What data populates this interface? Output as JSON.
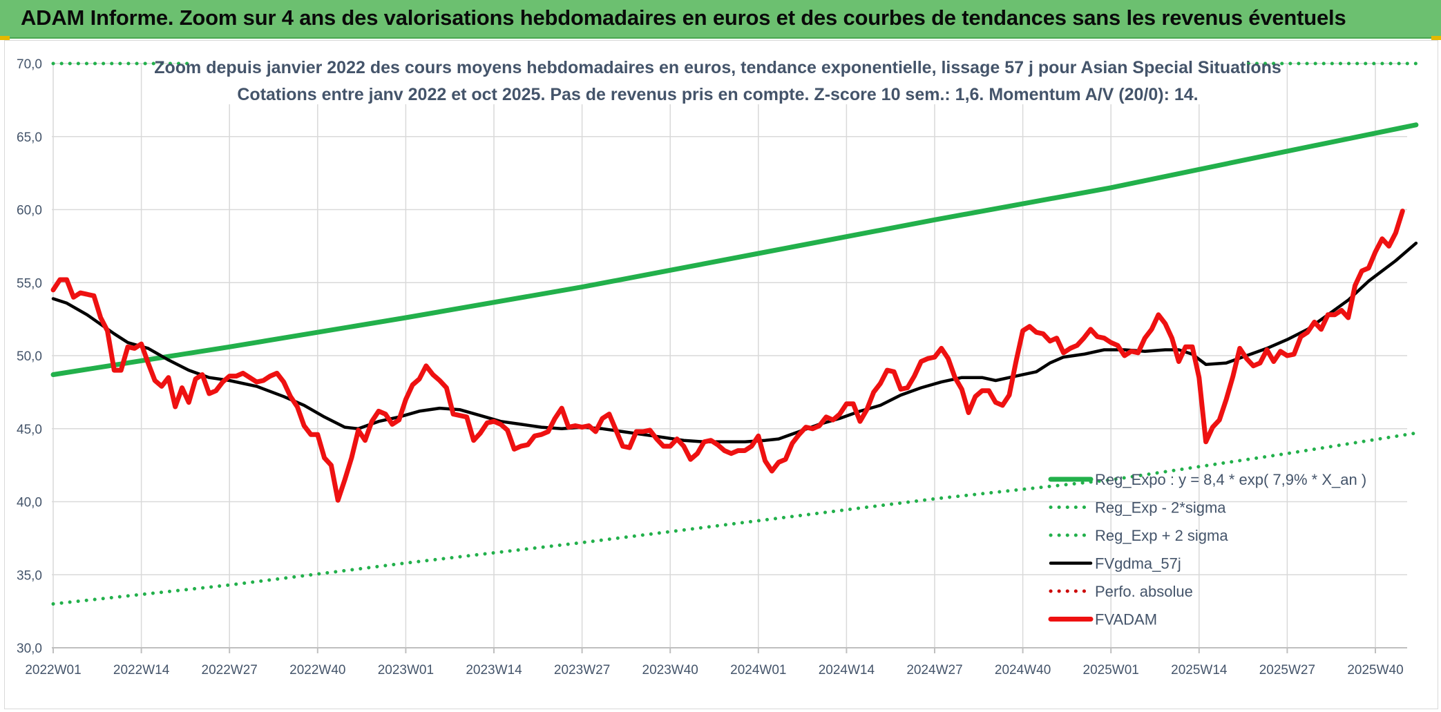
{
  "header": {
    "title": "ADAM Informe. Zoom sur 4 ans des valorisations hebdomadaires en euros et des courbes de tendances sans les revenus éventuels"
  },
  "colors": {
    "header_bg": "#6cc070",
    "regression": "#22b04b",
    "sigma_band": "#22b04b",
    "smoothed": "#000000",
    "price": "#ee1111",
    "perfo": "#cc0000",
    "axis_text": "#44546a",
    "grid": "#d9d9d9"
  },
  "chart_data": {
    "type": "line",
    "title": "Zoom depuis janvier 2022 des cours moyens hebdomadaires en euros, tendance exponentielle, lissage 57 j pour Asian Special Situations",
    "subtitle": "Cotations entre janv 2022 et oct 2025. Pas de revenus pris en compte. Z-score 10 sem.: 1,6. Momentum A/V (20/0): 14.",
    "xlabel": "",
    "ylabel": "",
    "ylim": [
      30,
      70
    ],
    "yticks": [
      "30,0",
      "35,0",
      "40,0",
      "45,0",
      "50,0",
      "55,0",
      "60,0",
      "65,0",
      "70,0"
    ],
    "grid": true,
    "x_start_index": 1,
    "x_end_index": 196,
    "x_ticks": [
      {
        "index": 1,
        "label": "2022W01"
      },
      {
        "index": 14,
        "label": "2022W14"
      },
      {
        "index": 27,
        "label": "2022W27"
      },
      {
        "index": 40,
        "label": "2022W40"
      },
      {
        "index": 53,
        "label": "2023W01"
      },
      {
        "index": 66,
        "label": "2023W14"
      },
      {
        "index": 79,
        "label": "2023W27"
      },
      {
        "index": 92,
        "label": "2023W40"
      },
      {
        "index": 105,
        "label": "2024W01"
      },
      {
        "index": 118,
        "label": "2024W14"
      },
      {
        "index": 131,
        "label": "2024W27"
      },
      {
        "index": 144,
        "label": "2024W40"
      },
      {
        "index": 157,
        "label": "2025W01"
      },
      {
        "index": 170,
        "label": "2025W14"
      },
      {
        "index": 183,
        "label": "2025W27"
      },
      {
        "index": 196,
        "label": "2025W40"
      }
    ],
    "legend_position": "lower-right",
    "series": [
      {
        "name": "Reg_Expo : y = 8,4 * exp( 7,9% *  X_an )",
        "style": "solid-thick",
        "color": "#22b04b",
        "points": [
          [
            1,
            48.7
          ],
          [
            27,
            50.6
          ],
          [
            53,
            52.6
          ],
          [
            79,
            54.7
          ],
          [
            105,
            57.0
          ],
          [
            131,
            59.3
          ],
          [
            157,
            61.5
          ],
          [
            183,
            64.0
          ],
          [
            202,
            65.8
          ]
        ]
      },
      {
        "name": "Reg_Exp - 2*sigma",
        "style": "dotted",
        "color": "#22b04b",
        "points": [
          [
            1,
            33.0
          ],
          [
            27,
            34.3
          ],
          [
            53,
            35.8
          ],
          [
            79,
            37.2
          ],
          [
            105,
            38.7
          ],
          [
            131,
            40.2
          ],
          [
            157,
            41.5
          ],
          [
            183,
            43.3
          ],
          [
            202,
            44.7
          ]
        ]
      },
      {
        "name": "Reg_Exp + 2 sigma",
        "style": "dotted",
        "color": "#22b04b",
        "points": [
          [
            1,
            70.0
          ],
          [
            20,
            70.0
          ],
          [
            185,
            70.0
          ],
          [
            202,
            70.0
          ]
        ]
      },
      {
        "name": "FVgdma_57j",
        "style": "solid",
        "color": "#000000",
        "points": [
          [
            1,
            53.9
          ],
          [
            3,
            53.6
          ],
          [
            6,
            52.8
          ],
          [
            10,
            51.5
          ],
          [
            12,
            50.9
          ],
          [
            15,
            50.5
          ],
          [
            18,
            49.7
          ],
          [
            21,
            49.0
          ],
          [
            24,
            48.5
          ],
          [
            27,
            48.3
          ],
          [
            31,
            47.9
          ],
          [
            35,
            47.2
          ],
          [
            38,
            46.6
          ],
          [
            41,
            45.8
          ],
          [
            44,
            45.1
          ],
          [
            46,
            45.0
          ],
          [
            49,
            45.5
          ],
          [
            52,
            45.8
          ],
          [
            55,
            46.2
          ],
          [
            58,
            46.4
          ],
          [
            61,
            46.3
          ],
          [
            64,
            45.9
          ],
          [
            67,
            45.5
          ],
          [
            70,
            45.3
          ],
          [
            73,
            45.1
          ],
          [
            76,
            45.0
          ],
          [
            79,
            45.1
          ],
          [
            82,
            45.0
          ],
          [
            85,
            44.8
          ],
          [
            88,
            44.6
          ],
          [
            91,
            44.4
          ],
          [
            94,
            44.2
          ],
          [
            97,
            44.1
          ],
          [
            100,
            44.1
          ],
          [
            103,
            44.1
          ],
          [
            106,
            44.2
          ],
          [
            108,
            44.3
          ],
          [
            111,
            44.8
          ],
          [
            114,
            45.3
          ],
          [
            117,
            45.7
          ],
          [
            120,
            46.2
          ],
          [
            123,
            46.6
          ],
          [
            126,
            47.3
          ],
          [
            129,
            47.8
          ],
          [
            132,
            48.2
          ],
          [
            135,
            48.5
          ],
          [
            138,
            48.5
          ],
          [
            140,
            48.3
          ],
          [
            143,
            48.6
          ],
          [
            146,
            48.9
          ],
          [
            148,
            49.5
          ],
          [
            150,
            49.9
          ],
          [
            153,
            50.1
          ],
          [
            156,
            50.4
          ],
          [
            159,
            50.4
          ],
          [
            162,
            50.3
          ],
          [
            165,
            50.4
          ],
          [
            167,
            50.4
          ],
          [
            169,
            50.1
          ],
          [
            171,
            49.4
          ],
          [
            174,
            49.5
          ],
          [
            177,
            50.0
          ],
          [
            180,
            50.5
          ],
          [
            183,
            51.1
          ],
          [
            186,
            51.8
          ],
          [
            189,
            52.8
          ],
          [
            192,
            53.8
          ],
          [
            195,
            55.1
          ],
          [
            199,
            56.5
          ],
          [
            202,
            57.7
          ]
        ]
      },
      {
        "name": "Perfo. absolue",
        "style": "dotted",
        "color": "#cc0000",
        "points": []
      },
      {
        "name": "FVADAM",
        "style": "solid-thick",
        "color": "#ee1111",
        "points": [
          [
            1,
            54.5
          ],
          [
            2,
            55.2
          ],
          [
            3,
            55.2
          ],
          [
            4,
            54.0
          ],
          [
            5,
            54.3
          ],
          [
            7,
            54.1
          ],
          [
            8,
            52.6
          ],
          [
            9,
            51.7
          ],
          [
            10,
            49.0
          ],
          [
            11,
            49.0
          ],
          [
            12,
            50.6
          ],
          [
            13,
            50.5
          ],
          [
            14,
            50.8
          ],
          [
            15,
            49.5
          ],
          [
            16,
            48.3
          ],
          [
            17,
            47.9
          ],
          [
            18,
            48.5
          ],
          [
            19,
            46.5
          ],
          [
            20,
            47.8
          ],
          [
            21,
            46.8
          ],
          [
            22,
            48.4
          ],
          [
            23,
            48.7
          ],
          [
            24,
            47.4
          ],
          [
            25,
            47.6
          ],
          [
            26,
            48.2
          ],
          [
            27,
            48.6
          ],
          [
            28,
            48.6
          ],
          [
            29,
            48.8
          ],
          [
            30,
            48.5
          ],
          [
            31,
            48.2
          ],
          [
            32,
            48.3
          ],
          [
            33,
            48.6
          ],
          [
            34,
            48.8
          ],
          [
            35,
            48.2
          ],
          [
            36,
            47.2
          ],
          [
            37,
            46.5
          ],
          [
            38,
            45.2
          ],
          [
            39,
            44.6
          ],
          [
            40,
            44.6
          ],
          [
            41,
            43.0
          ],
          [
            42,
            42.5
          ],
          [
            43,
            40.1
          ],
          [
            44,
            41.5
          ],
          [
            45,
            43.0
          ],
          [
            46,
            44.9
          ],
          [
            47,
            44.2
          ],
          [
            48,
            45.5
          ],
          [
            49,
            46.2
          ],
          [
            50,
            46.0
          ],
          [
            51,
            45.3
          ],
          [
            52,
            45.6
          ],
          [
            53,
            47.0
          ],
          [
            54,
            48.0
          ],
          [
            55,
            48.4
          ],
          [
            56,
            49.3
          ],
          [
            57,
            48.7
          ],
          [
            58,
            48.3
          ],
          [
            59,
            47.8
          ],
          [
            60,
            46.0
          ],
          [
            61,
            45.9
          ],
          [
            62,
            45.8
          ],
          [
            63,
            44.2
          ],
          [
            64,
            44.7
          ],
          [
            65,
            45.4
          ],
          [
            66,
            45.5
          ],
          [
            67,
            45.3
          ],
          [
            68,
            44.9
          ],
          [
            69,
            43.6
          ],
          [
            70,
            43.8
          ],
          [
            71,
            43.9
          ],
          [
            72,
            44.5
          ],
          [
            73,
            44.6
          ],
          [
            74,
            44.8
          ],
          [
            75,
            45.7
          ],
          [
            76,
            46.4
          ],
          [
            77,
            45.1
          ],
          [
            78,
            45.2
          ],
          [
            79,
            45.1
          ],
          [
            80,
            45.2
          ],
          [
            81,
            44.8
          ],
          [
            82,
            45.7
          ],
          [
            83,
            46.0
          ],
          [
            84,
            44.9
          ],
          [
            85,
            43.8
          ],
          [
            86,
            43.7
          ],
          [
            87,
            44.8
          ],
          [
            88,
            44.8
          ],
          [
            89,
            44.9
          ],
          [
            90,
            44.3
          ],
          [
            91,
            43.8
          ],
          [
            92,
            43.8
          ],
          [
            93,
            44.3
          ],
          [
            94,
            43.8
          ],
          [
            95,
            42.9
          ],
          [
            96,
            43.3
          ],
          [
            97,
            44.1
          ],
          [
            98,
            44.2
          ],
          [
            99,
            43.9
          ],
          [
            100,
            43.5
          ],
          [
            101,
            43.3
          ],
          [
            102,
            43.5
          ],
          [
            103,
            43.5
          ],
          [
            104,
            43.8
          ],
          [
            105,
            44.5
          ],
          [
            106,
            42.8
          ],
          [
            107,
            42.1
          ],
          [
            108,
            42.7
          ],
          [
            109,
            42.9
          ],
          [
            110,
            44.0
          ],
          [
            111,
            44.6
          ],
          [
            112,
            45.1
          ],
          [
            113,
            45.0
          ],
          [
            114,
            45.2
          ],
          [
            115,
            45.8
          ],
          [
            116,
            45.6
          ],
          [
            117,
            46.0
          ],
          [
            118,
            46.7
          ],
          [
            119,
            46.7
          ],
          [
            120,
            45.5
          ],
          [
            121,
            46.3
          ],
          [
            122,
            47.5
          ],
          [
            123,
            48.1
          ],
          [
            124,
            49.0
          ],
          [
            125,
            48.9
          ],
          [
            126,
            47.7
          ],
          [
            127,
            47.8
          ],
          [
            128,
            48.6
          ],
          [
            129,
            49.6
          ],
          [
            130,
            49.8
          ],
          [
            131,
            49.9
          ],
          [
            132,
            50.5
          ],
          [
            133,
            49.8
          ],
          [
            134,
            48.5
          ],
          [
            135,
            47.7
          ],
          [
            136,
            46.1
          ],
          [
            137,
            47.2
          ],
          [
            138,
            47.6
          ],
          [
            139,
            47.6
          ],
          [
            140,
            46.8
          ],
          [
            141,
            46.6
          ],
          [
            142,
            47.3
          ],
          [
            143,
            49.6
          ],
          [
            144,
            51.7
          ],
          [
            145,
            52.0
          ],
          [
            146,
            51.6
          ],
          [
            147,
            51.5
          ],
          [
            148,
            51.0
          ],
          [
            149,
            51.2
          ],
          [
            150,
            50.2
          ],
          [
            151,
            50.5
          ],
          [
            152,
            50.7
          ],
          [
            153,
            51.2
          ],
          [
            154,
            51.8
          ],
          [
            155,
            51.3
          ],
          [
            156,
            51.2
          ],
          [
            157,
            50.9
          ],
          [
            158,
            50.7
          ],
          [
            159,
            50.0
          ],
          [
            160,
            50.3
          ],
          [
            161,
            50.2
          ],
          [
            162,
            51.2
          ],
          [
            163,
            51.8
          ],
          [
            164,
            52.8
          ],
          [
            165,
            52.2
          ],
          [
            166,
            51.2
          ],
          [
            167,
            49.6
          ],
          [
            168,
            50.6
          ],
          [
            169,
            50.6
          ],
          [
            170,
            48.5
          ],
          [
            171,
            44.1
          ],
          [
            172,
            45.1
          ],
          [
            173,
            45.6
          ],
          [
            174,
            47.0
          ],
          [
            175,
            48.6
          ],
          [
            176,
            50.5
          ],
          [
            177,
            49.8
          ],
          [
            178,
            49.3
          ],
          [
            179,
            49.5
          ],
          [
            180,
            50.4
          ],
          [
            181,
            49.6
          ],
          [
            182,
            50.3
          ],
          [
            183,
            50.0
          ],
          [
            184,
            50.1
          ],
          [
            185,
            51.3
          ],
          [
            186,
            51.6
          ],
          [
            187,
            52.3
          ],
          [
            188,
            51.8
          ],
          [
            189,
            52.8
          ],
          [
            190,
            52.8
          ],
          [
            191,
            53.1
          ],
          [
            192,
            52.6
          ],
          [
            193,
            54.8
          ],
          [
            194,
            55.8
          ],
          [
            195,
            56.0
          ],
          [
            196,
            57.1
          ],
          [
            197,
            58.0
          ],
          [
            198,
            57.5
          ],
          [
            199,
            58.4
          ],
          [
            200,
            59.9
          ]
        ]
      }
    ]
  }
}
